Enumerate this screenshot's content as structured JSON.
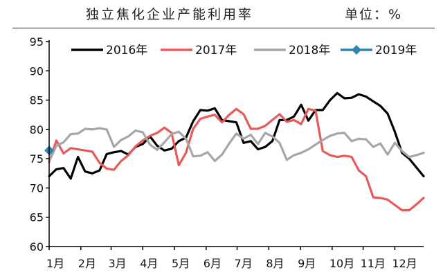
{
  "header": {
    "title": "独立焦化企业产能利用率",
    "unit": "单位：%"
  },
  "chart_data": {
    "type": "line",
    "ylim": [
      60,
      95
    ],
    "yticks": [
      60,
      65,
      70,
      75,
      80,
      85,
      90,
      95
    ],
    "xlim": [
      1,
      53
    ],
    "xticks": [
      {
        "label": "1月",
        "week": 1
      },
      {
        "label": "2月",
        "week": 5.4
      },
      {
        "label": "3月",
        "week": 9.6
      },
      {
        "label": "4月",
        "week": 14
      },
      {
        "label": "5月",
        "week": 18.4
      },
      {
        "label": "6月",
        "week": 22.8
      },
      {
        "label": "7月",
        "week": 27.1
      },
      {
        "label": "8月",
        "week": 31.5
      },
      {
        "label": "9月",
        "week": 35.9
      },
      {
        "label": "10月",
        "week": 40.3
      },
      {
        "label": "11月",
        "week": 44.6
      },
      {
        "label": "12月",
        "week": 49
      }
    ],
    "legend_position": "top",
    "series": [
      {
        "name": "2016年",
        "color": "#000000",
        "marker": "none",
        "values": [
          72,
          73.2,
          73.4,
          71.6,
          75.3,
          72.8,
          72.5,
          73,
          75.8,
          76.1,
          76.3,
          75.7,
          77,
          77.5,
          78.8,
          77.2,
          76.4,
          76.7,
          78,
          78.6,
          81.4,
          83.3,
          83.2,
          83.6,
          81.6,
          81.4,
          81.2,
          77.7,
          78,
          76.6,
          77,
          78,
          81.6,
          81.6,
          82.2,
          84.2,
          81.5,
          83.3,
          83.3,
          85,
          86.2,
          85.3,
          85.4,
          86,
          85.6,
          84.8,
          84,
          82.7,
          79.6,
          76,
          75,
          73.5,
          72
        ]
      },
      {
        "name": "2017年",
        "color": "#e85a5a",
        "marker": "none",
        "values": [
          74.4,
          78.1,
          75.9,
          76.8,
          76.6,
          76.4,
          76.2,
          74.3,
          73.3,
          73.1,
          74.6,
          75.6,
          77.1,
          78.1,
          78.9,
          79.4,
          80.3,
          79.4,
          73.9,
          76,
          80.1,
          81.8,
          82.2,
          82.5,
          81.2,
          82.5,
          83.5,
          82.6,
          80.1,
          80.1,
          80.6,
          81.6,
          82.6,
          81.3,
          81.6,
          80.9,
          83.5,
          83.2,
          76.3,
          75.6,
          75.3,
          75.5,
          75.3,
          73,
          72,
          68.4,
          68.3,
          68,
          67.1,
          66.2,
          66.2,
          67.2,
          68.3
        ]
      },
      {
        "name": "2018年",
        "color": "#a6a6a6",
        "marker": "none",
        "values": [
          74.5,
          77.2,
          77.8,
          79.2,
          79.3,
          80.1,
          80,
          80.2,
          80,
          77,
          78.2,
          78.8,
          79.8,
          79.5,
          77.4,
          76.5,
          77.8,
          79.2,
          79.6,
          78.4,
          75.4,
          75.5,
          76.1,
          74.6,
          75.7,
          77.6,
          79.3,
          78.4,
          79.1,
          77.5,
          79.4,
          78.8,
          77.7,
          74.8,
          75.6,
          76,
          76.6,
          77.4,
          78.2,
          78.9,
          79.3,
          79.4,
          78,
          78.4,
          78.3,
          77,
          77.6,
          75.7,
          77.7,
          76.3,
          75.3,
          75.6,
          76
        ]
      },
      {
        "name": "2019年",
        "color": "#2e86ab",
        "marker": "diamond",
        "values": [
          76.4
        ]
      }
    ]
  }
}
